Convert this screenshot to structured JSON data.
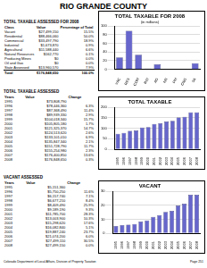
{
  "page": {
    "title": "RIO GRANDE COUNTY",
    "footer_left": "Colorado Department of Local Affairs, Division of Property Taxation",
    "footer_right": "Page 251"
  },
  "tables": [
    {
      "title": "TOTAL TAXABLE ASSESSED FOR 2008",
      "columns": [
        "Class",
        "Value",
        "Percentage of Total"
      ],
      "rows": [
        [
          "Vacant",
          "$27,499,150",
          "15.5%"
        ],
        [
          "Residential",
          "$88,466,060",
          "50.0%"
        ],
        [
          "Commercial",
          "$33,497,790",
          "18.9%"
        ],
        [
          "Industrial",
          "$1,673,870",
          "0.9%"
        ],
        [
          "Agricultural",
          "$11,588,440",
          "6.6%"
        ],
        [
          "Natural Resources",
          "$162,770",
          "0.1%"
        ],
        [
          "Producing Mines",
          "$0",
          "0.0%"
        ],
        [
          "Oil and Gas",
          "$0",
          "0.0%"
        ],
        [
          "State Assessed",
          "$13,960,570",
          "7.9%"
        ],
        [
          "Total",
          "$176,848,650",
          "100.0%"
        ]
      ]
    },
    {
      "title": "TOTAL TAXABLE ASSESSED",
      "columns": [
        "Years",
        "Value",
        "Change"
      ],
      "rows": [
        [
          "1995",
          "$73,808,790",
          null
        ],
        [
          "1996",
          "$78,446,360",
          "6.3%"
        ],
        [
          "1997",
          "$87,368,490",
          "11.4%"
        ],
        [
          "1998",
          "$89,939,330",
          "2.9%"
        ],
        [
          "1999",
          "$104,018,340",
          "15.7%"
        ],
        [
          "2000",
          "$105,805,180",
          "1.7%"
        ],
        [
          "2001",
          "$121,325,370",
          "14.7%"
        ],
        [
          "2002",
          "$124,513,620",
          "2.6%"
        ],
        [
          "2003",
          "$133,101,010",
          "6.9%"
        ],
        [
          "2004",
          "$135,847,340",
          "2.1%"
        ],
        [
          "2005",
          "$151,728,790",
          "11.7%"
        ],
        [
          "2006",
          "$155,254,980",
          "2.3%"
        ],
        [
          "2007",
          "$176,400,850",
          "13.6%"
        ],
        [
          "2008",
          "$176,848,650",
          "0.3%"
        ]
      ]
    },
    {
      "title": "VACANT ASSESSED",
      "columns": [
        "Years",
        "Value",
        "Change"
      ],
      "rows": [
        [
          "1995",
          "$5,151,360",
          null
        ],
        [
          "1996",
          "$5,750,250",
          "11.6%"
        ],
        [
          "1997",
          "$6,157,740",
          "7.1%"
        ],
        [
          "1998",
          "$6,677,210",
          "8.4%"
        ],
        [
          "1999",
          "$8,409,490",
          "25.9%"
        ],
        [
          "2000",
          "$9,189,190",
          "9.3%"
        ],
        [
          "2001",
          "$11,785,700",
          "28.3%"
        ],
        [
          "2002",
          "$13,003,900",
          "10.3%"
        ],
        [
          "2003",
          "$15,298,620",
          "17.6%"
        ],
        [
          "2004",
          "$16,082,840",
          "5.1%"
        ],
        [
          "2005",
          "$19,887,240",
          "23.7%"
        ],
        [
          "2006",
          "$21,074,200",
          "6.0%"
        ],
        [
          "2007",
          "$27,499,110",
          "30.5%"
        ],
        [
          "2008",
          "$27,499,150",
          "0.0%"
        ]
      ]
    }
  ],
  "chart_data": [
    {
      "type": "bar",
      "title": "TOTAL TAXABLE FOR 2008",
      "subtitle": "(in millions)",
      "categories": [
        "VAC",
        "RES",
        "COM",
        "IND",
        "AG",
        "NR",
        "PM",
        "O&G",
        "SA"
      ],
      "values": [
        27.5,
        88.5,
        33.5,
        1.7,
        11.6,
        0.2,
        0,
        0,
        14.0
      ],
      "color": "#6666cc",
      "ylim": [
        0,
        100
      ],
      "yticks": [
        0,
        20,
        40,
        60,
        80,
        100
      ],
      "grid": true
    },
    {
      "type": "bar",
      "title": "TOTAL TAXABLE",
      "categories": [
        "1995",
        "1996",
        "1997",
        "1998",
        "1999",
        "2000",
        "2001",
        "2002",
        "2003",
        "2004",
        "2005",
        "2006",
        "2007",
        "2008"
      ],
      "values": [
        73.8,
        78.4,
        87.4,
        89.9,
        104.0,
        105.8,
        121.3,
        124.5,
        133.1,
        135.8,
        151.7,
        155.3,
        176.4,
        176.8
      ],
      "color": "#6666cc",
      "ylim": [
        0,
        200
      ],
      "yticks": [
        0,
        50,
        100,
        150,
        200
      ],
      "grid": true
    },
    {
      "type": "bar",
      "title": "VACANT",
      "categories": [
        "1995",
        "1996",
        "1997",
        "1998",
        "1999",
        "2000",
        "2001",
        "2002",
        "2003",
        "2004",
        "2005",
        "2006",
        "2007",
        "2008"
      ],
      "values": [
        5.2,
        5.8,
        6.2,
        6.7,
        8.4,
        9.2,
        11.8,
        13.0,
        15.3,
        16.1,
        19.9,
        21.1,
        27.5,
        27.5
      ],
      "color": "#6666cc",
      "ylim": [
        0,
        30
      ],
      "yticks": [
        0,
        10,
        20,
        30
      ],
      "grid": true
    }
  ]
}
